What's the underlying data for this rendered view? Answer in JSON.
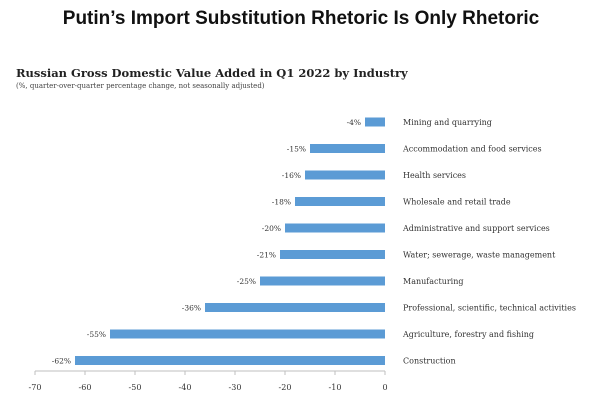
{
  "page": {
    "headline": "Putin’s Import Substitution Rhetoric Is Only Rhetoric"
  },
  "chart_data": {
    "type": "bar",
    "orientation": "horizontal",
    "title": "Russian Gross Domestic Value Added in Q1 2022 by Industry",
    "subtitle": "(%, quarter-over-quarter percentage change, not seasonally adjusted)",
    "categories": [
      "Mining and quarrying",
      "Accommodation and food services",
      "Health services",
      "Wholesale and retail trade",
      "Administrative and support services",
      "Water; sewerage, waste management",
      "Manufacturing",
      "Professional, scientific, technical activities",
      "Agriculture, forestry and fishing",
      "Construction"
    ],
    "values": [
      -4,
      -15,
      -16,
      -18,
      -20,
      -21,
      -25,
      -36,
      -55,
      -62
    ],
    "value_labels": [
      "-4%",
      "-15%",
      "-16%",
      "-18%",
      "-20%",
      "-21%",
      "-25%",
      "-36%",
      "-55%",
      "-62%"
    ],
    "xlim": [
      -70,
      0
    ],
    "xticks": [
      -70,
      -60,
      -50,
      -40,
      -30,
      -20,
      -10,
      0
    ],
    "grid": false,
    "legend": "none",
    "bar_color": "#5b9bd5"
  }
}
